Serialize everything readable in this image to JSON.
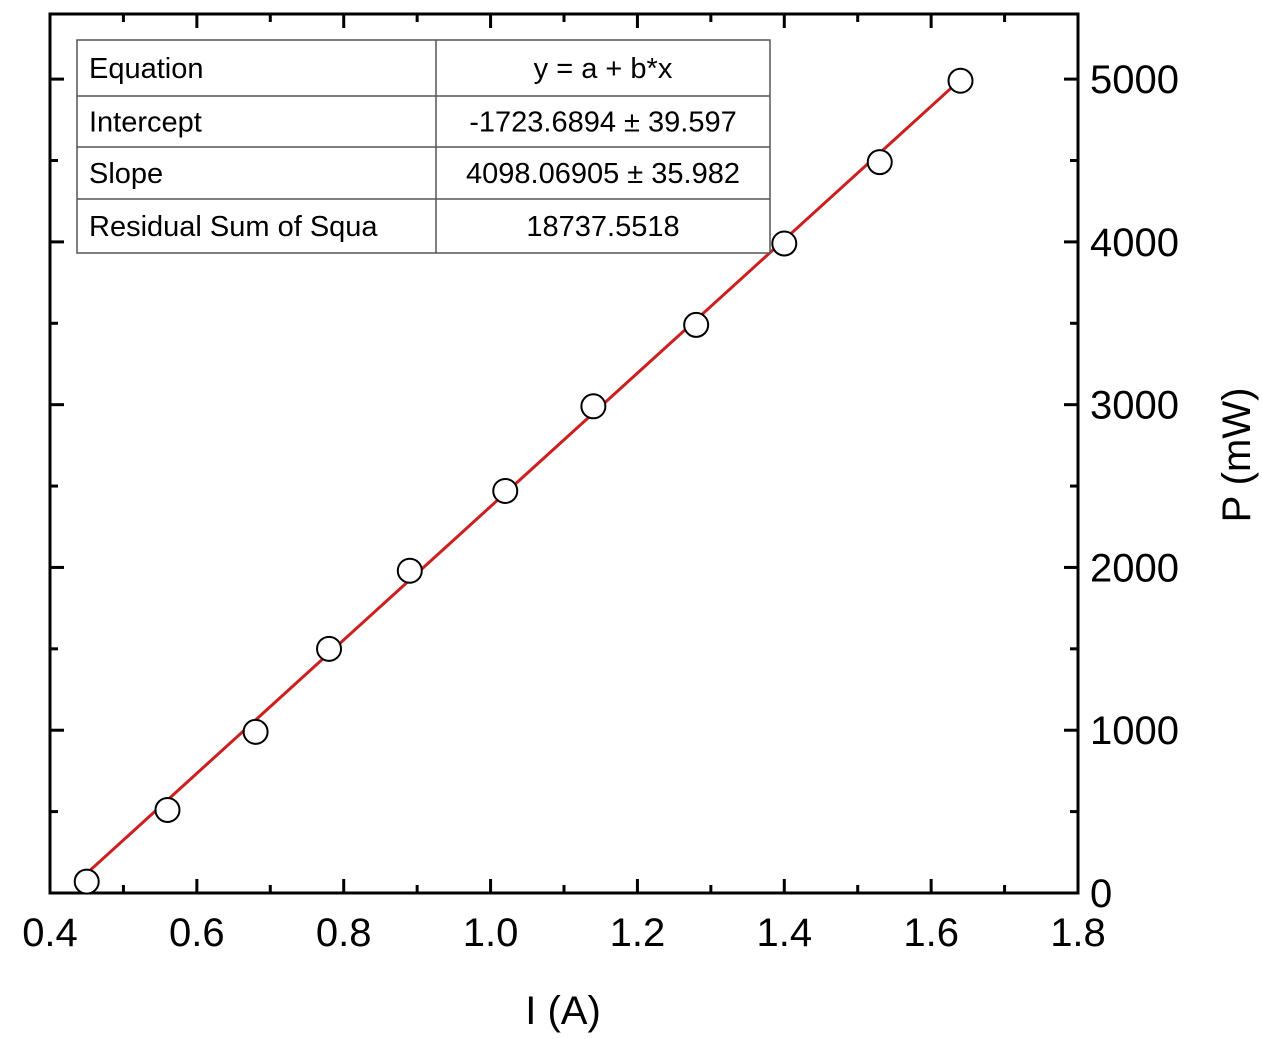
{
  "chart_data": {
    "type": "scatter",
    "title": "",
    "xlabel": "I (A)",
    "ylabel": "P (mW)",
    "xlim": [
      0.4,
      1.8
    ],
    "ylim": [
      0,
      5400
    ],
    "x_ticks": [
      0.4,
      0.6,
      0.8,
      1.0,
      1.2,
      1.4,
      1.6,
      1.8
    ],
    "x_tick_labels": [
      "0.4",
      "0.6",
      "0.8",
      "1.0",
      "1.2",
      "1.4",
      "1.6",
      "1.8"
    ],
    "y_ticks": [
      0,
      1000,
      2000,
      3000,
      4000,
      5000
    ],
    "y_tick_labels": [
      "0",
      "1000",
      "2000",
      "3000",
      "4000",
      "5000"
    ],
    "y_axis_side": "right",
    "grid": false,
    "series": [
      {
        "marker": "open-circle",
        "points": [
          {
            "x": 0.45,
            "y": 70
          },
          {
            "x": 0.56,
            "y": 510
          },
          {
            "x": 0.68,
            "y": 990
          },
          {
            "x": 0.78,
            "y": 1500
          },
          {
            "x": 0.89,
            "y": 1980
          },
          {
            "x": 1.02,
            "y": 2470
          },
          {
            "x": 1.14,
            "y": 2990
          },
          {
            "x": 1.28,
            "y": 3490
          },
          {
            "x": 1.4,
            "y": 3990
          },
          {
            "x": 1.53,
            "y": 4490
          },
          {
            "x": 1.64,
            "y": 4990
          }
        ]
      }
    ],
    "fit_line": {
      "color": "#cc1f1f",
      "intercept": -1723.6894,
      "slope": 4098.06905,
      "x_range": [
        0.45,
        1.64
      ]
    },
    "fit_table": {
      "rows": [
        {
          "label": "Equation",
          "value": "y = a + b*x"
        },
        {
          "label": "Intercept",
          "value": "-1723.6894 ± 39.597"
        },
        {
          "label": "Slope",
          "value": "4098.06905 ± 35.982"
        },
        {
          "label": "Residual Sum of Squa",
          "value": "18737.5518"
        }
      ]
    }
  }
}
